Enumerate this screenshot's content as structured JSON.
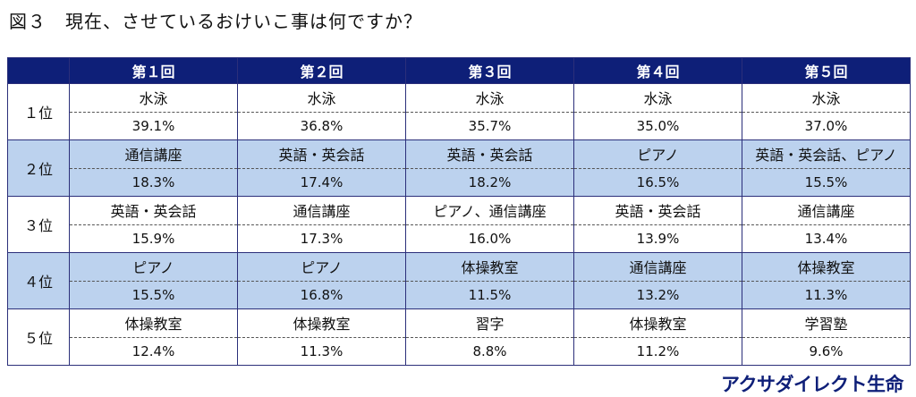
{
  "title": "図３　現在、させているおけいこ事は何ですか？",
  "table": {
    "corner": "",
    "headers": [
      "第１回",
      "第２回",
      "第３回",
      "第４回",
      "第５回"
    ],
    "rows": [
      {
        "rank": "１位",
        "cells": [
          {
            "item": "水泳",
            "pct": "39.1%"
          },
          {
            "item": "水泳",
            "pct": "36.8%"
          },
          {
            "item": "水泳",
            "pct": "35.7%"
          },
          {
            "item": "水泳",
            "pct": "35.0%"
          },
          {
            "item": "水泳",
            "pct": "37.0%"
          }
        ]
      },
      {
        "rank": "２位",
        "cells": [
          {
            "item": "通信講座",
            "pct": "18.3%"
          },
          {
            "item": "英語・英会話",
            "pct": "17.4%"
          },
          {
            "item": "英語・英会話",
            "pct": "18.2%"
          },
          {
            "item": "ピアノ",
            "pct": "16.5%"
          },
          {
            "item": "英語・英会話、ピアノ",
            "pct": "15.5%"
          }
        ]
      },
      {
        "rank": "３位",
        "cells": [
          {
            "item": "英語・英会話",
            "pct": "15.9%"
          },
          {
            "item": "通信講座",
            "pct": "17.3%"
          },
          {
            "item": "ピアノ、通信講座",
            "pct": "16.0%"
          },
          {
            "item": "英語・英会話",
            "pct": "13.9%"
          },
          {
            "item": "通信講座",
            "pct": "13.4%"
          }
        ]
      },
      {
        "rank": "４位",
        "cells": [
          {
            "item": "ピアノ",
            "pct": "15.5%"
          },
          {
            "item": "ピアノ",
            "pct": "16.8%"
          },
          {
            "item": "体操教室",
            "pct": "11.5%"
          },
          {
            "item": "通信講座",
            "pct": "13.2%"
          },
          {
            "item": "体操教室",
            "pct": "11.3%"
          }
        ]
      },
      {
        "rank": "５位",
        "cells": [
          {
            "item": "体操教室",
            "pct": "12.4%"
          },
          {
            "item": "体操教室",
            "pct": "11.3%"
          },
          {
            "item": "習字",
            "pct": "8.8%"
          },
          {
            "item": "体操教室",
            "pct": "11.2%"
          },
          {
            "item": "学習塾",
            "pct": "9.6%"
          }
        ]
      }
    ]
  },
  "brand": "アクサダイレクト生命",
  "colors": {
    "header_bg": "#0e1f78",
    "shaded_row": "#bcd2ee",
    "brand": "#0e1f78"
  }
}
